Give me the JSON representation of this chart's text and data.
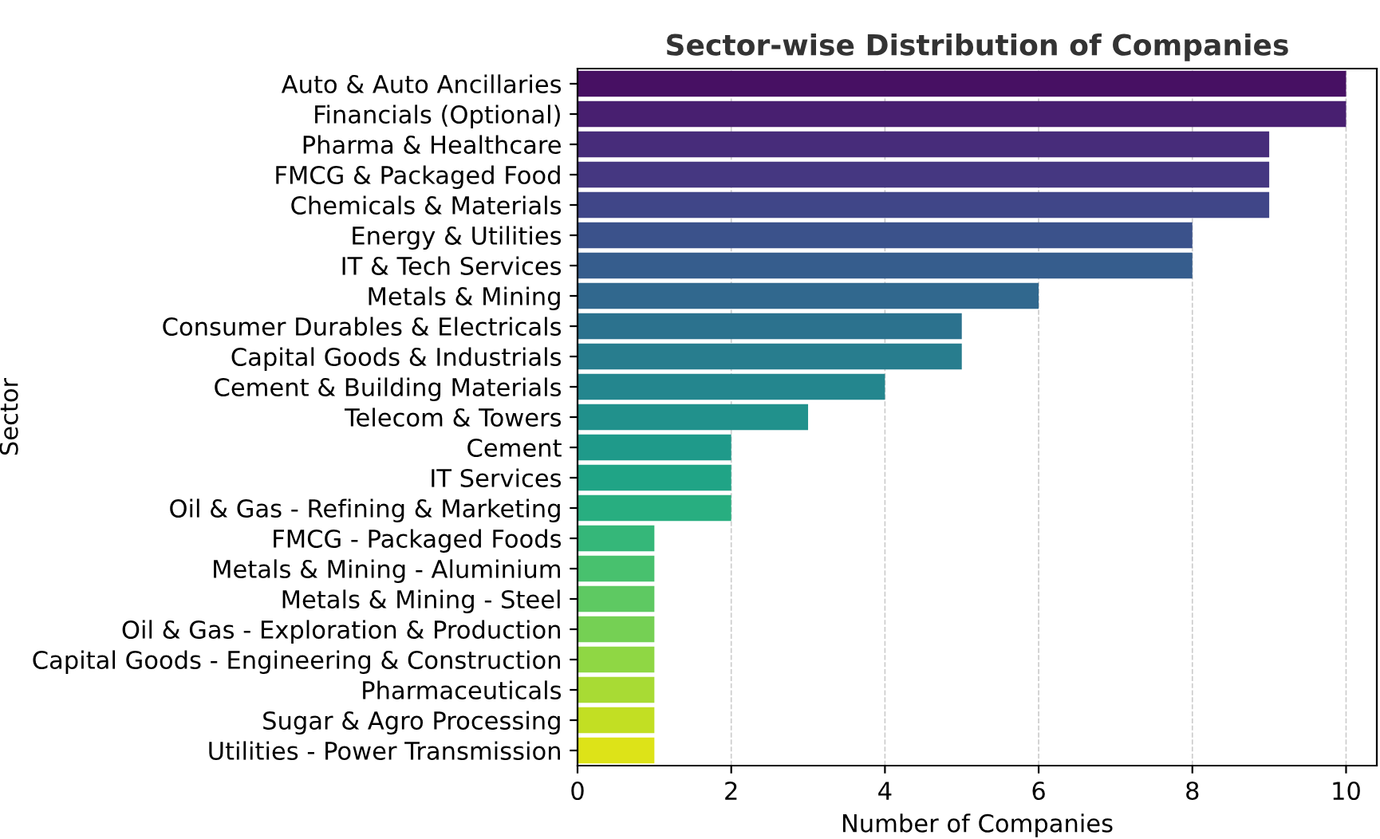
{
  "chart_data": {
    "type": "bar",
    "orientation": "horizontal",
    "title": "Sector-wise Distribution of Companies",
    "xlabel": "Number of Companies",
    "ylabel": "Sector",
    "categories": [
      "Auto & Auto Ancillaries",
      "Financials (Optional)",
      "Pharma & Healthcare",
      "FMCG & Packaged Food",
      "Chemicals & Materials",
      "Energy & Utilities",
      "IT & Tech Services",
      "Metals & Mining",
      "Consumer Durables & Electricals",
      "Capital Goods & Industrials",
      "Cement & Building Materials",
      "Telecom & Towers",
      "Cement",
      "IT Services",
      "Oil & Gas - Refining & Marketing",
      "FMCG - Packaged Foods",
      "Metals & Mining - Aluminium",
      "Metals & Mining - Steel",
      "Oil & Gas - Exploration & Production",
      "Capital Goods - Engineering & Construction",
      "Pharmaceuticals",
      "Sugar & Agro Processing",
      "Utilities - Power Transmission"
    ],
    "values": [
      10,
      10,
      9,
      9,
      9,
      8,
      8,
      6,
      5,
      5,
      4,
      3,
      2,
      2,
      2,
      1,
      1,
      1,
      1,
      1,
      1,
      1,
      1
    ],
    "colors": [
      "#471063",
      "#481f70",
      "#472c7a",
      "#453781",
      "#404688",
      "#3b528b",
      "#365d8d",
      "#31688e",
      "#2c728e",
      "#287d8e",
      "#24868e",
      "#21918c",
      "#1f9a8a",
      "#20a486",
      "#28ae80",
      "#35b779",
      "#48c16e",
      "#5ec962",
      "#75d054",
      "#8fd744",
      "#a8db34",
      "#c2df23",
      "#dde318"
    ],
    "xlim": [
      0,
      10.4
    ],
    "xticks": [
      0,
      2,
      4,
      6,
      8,
      10
    ],
    "grid": "x",
    "legend": false
  }
}
